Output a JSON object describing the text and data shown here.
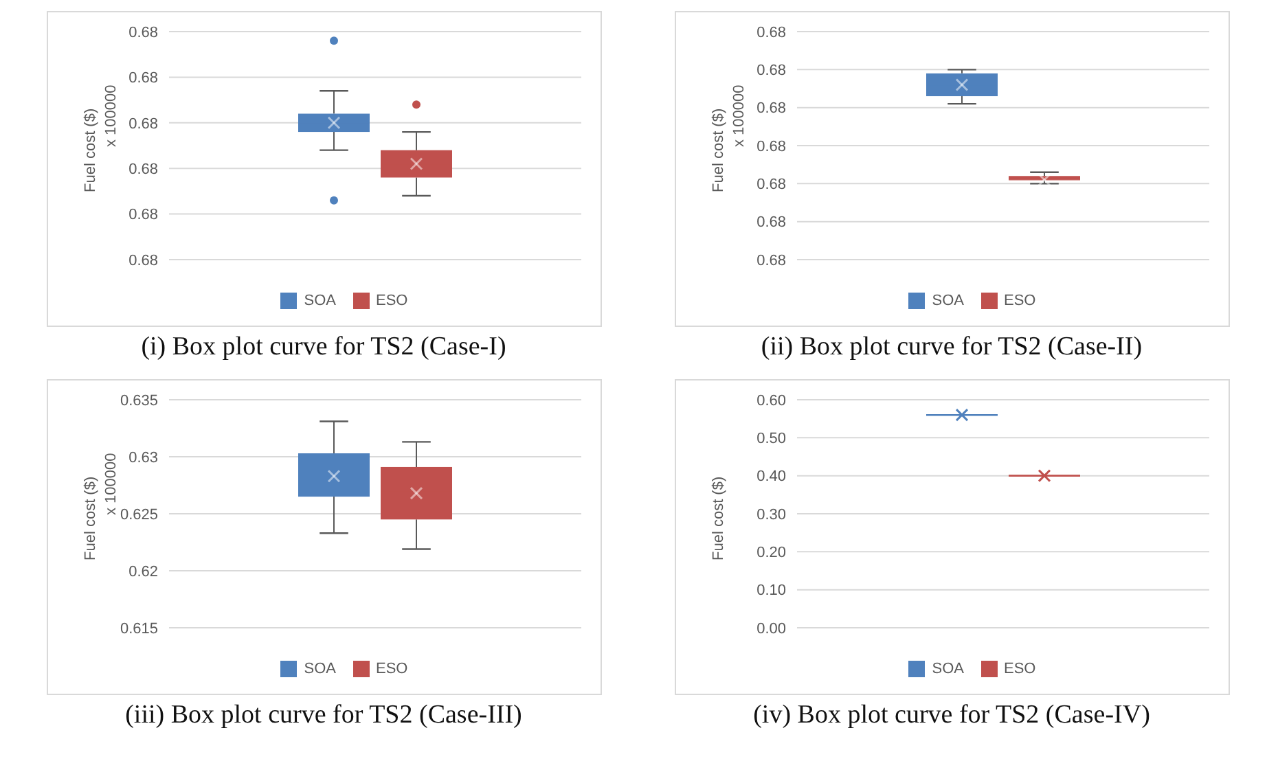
{
  "chart_data": [
    {
      "type": "box",
      "title": "(i) Box plot curve for TS2 (Case-I)",
      "ylabel": "Fuel cost ($)",
      "annotations": [
        "x 100000"
      ],
      "categories": [
        null
      ],
      "ylim": [
        0.6795,
        0.68
      ],
      "yticks": [
        {
          "value": 0.6795,
          "label": "0.68"
        },
        {
          "value": 0.6796,
          "label": "0.68"
        },
        {
          "value": 0.6797,
          "label": "0.68"
        },
        {
          "value": 0.6798,
          "label": "0.68"
        },
        {
          "value": 0.6799,
          "label": "0.68"
        },
        {
          "value": 0.68,
          "label": "0.68"
        }
      ],
      "grid": "y",
      "legend": "bottom",
      "series": [
        {
          "name": "SOA",
          "color": "#4f81bd",
          "boxes": [
            {
              "low": 0.67974,
              "q1": 0.67978,
              "median": 0.6798,
              "q3": 0.67982,
              "high": 0.67987,
              "mean": 0.6798,
              "outliers": [
                0.67998,
                0.67963
              ]
            }
          ]
        },
        {
          "name": "ESO",
          "color": "#c0504d",
          "boxes": [
            {
              "low": 0.67964,
              "q1": 0.67968,
              "median": 0.67971,
              "q3": 0.67974,
              "high": 0.67978,
              "mean": 0.67971,
              "outliers": [
                0.67984
              ]
            }
          ]
        }
      ]
    },
    {
      "type": "box",
      "title": "(ii) Box plot curve for TS2 (Case-II)",
      "ylabel": "Fuel cost ($)",
      "annotations": [
        "x 100000"
      ],
      "categories": [
        null
      ],
      "ylim": [
        0.6794,
        0.68
      ],
      "yticks": [
        {
          "value": 0.6794,
          "label": "0.68"
        },
        {
          "value": 0.6795,
          "label": "0.68"
        },
        {
          "value": 0.6796,
          "label": "0.68"
        },
        {
          "value": 0.6797,
          "label": "0.68"
        },
        {
          "value": 0.6798,
          "label": "0.68"
        },
        {
          "value": 0.6799,
          "label": "0.68"
        },
        {
          "value": 0.68,
          "label": "0.68"
        }
      ],
      "grid": "y",
      "legend": "bottom",
      "series": [
        {
          "name": "SOA",
          "color": "#4f81bd",
          "boxes": [
            {
              "low": 0.67981,
              "q1": 0.67983,
              "median": 0.67986,
              "q3": 0.67989,
              "high": 0.6799,
              "mean": 0.67986
            }
          ]
        },
        {
          "name": "ESO",
          "color": "#c0504d",
          "boxes": [
            {
              "low": 0.6796,
              "q1": 0.67961,
              "median": 0.67961,
              "q3": 0.67962,
              "high": 0.67963,
              "mean": 0.67961
            }
          ]
        }
      ]
    },
    {
      "type": "box",
      "title": "(iii) Box plot curve for TS2 (Case-III)",
      "ylabel": "Fuel cost ($)",
      "annotations": [
        "x 100000"
      ],
      "categories": [
        null
      ],
      "ylim": [
        0.615,
        0.635
      ],
      "yticks": [
        0.615,
        0.62,
        0.625,
        0.63,
        0.635
      ],
      "grid": "y",
      "legend": "bottom",
      "series": [
        {
          "name": "SOA",
          "color": "#4f81bd",
          "boxes": [
            {
              "low": 0.6233,
              "q1": 0.6265,
              "median": 0.6282,
              "q3": 0.6303,
              "high": 0.6331,
              "mean": 0.6283
            }
          ]
        },
        {
          "name": "ESO",
          "color": "#c0504d",
          "boxes": [
            {
              "low": 0.6219,
              "q1": 0.6245,
              "median": 0.627,
              "q3": 0.6291,
              "high": 0.6313,
              "mean": 0.6268
            }
          ]
        }
      ]
    },
    {
      "type": "box",
      "title": "(iv) Box plot curve for TS2 (Case-IV)",
      "ylabel": "Fuel cost ($)",
      "categories": [
        null
      ],
      "ylim": [
        0,
        0.6
      ],
      "yticks": [
        {
          "value": 0,
          "label": "0.00"
        },
        {
          "value": 0.1,
          "label": "0.10"
        },
        {
          "value": 0.2,
          "label": "0.20"
        },
        {
          "value": 0.3,
          "label": "0.30"
        },
        {
          "value": 0.4,
          "label": "0.40"
        },
        {
          "value": 0.5,
          "label": "0.50"
        },
        {
          "value": 0.6,
          "label": "0.60"
        }
      ],
      "grid": "y",
      "legend": "bottom",
      "series": [
        {
          "name": "SOA",
          "color": "#4f81bd",
          "boxes": [
            {
              "low": 0.56,
              "q1": 0.56,
              "median": 0.56,
              "q3": 0.56,
              "high": 0.56,
              "mean": 0.56
            }
          ]
        },
        {
          "name": "ESO",
          "color": "#c0504d",
          "boxes": [
            {
              "low": 0.4,
              "q1": 0.4,
              "median": 0.4,
              "q3": 0.4,
              "high": 0.4,
              "mean": 0.4
            }
          ]
        }
      ]
    }
  ]
}
